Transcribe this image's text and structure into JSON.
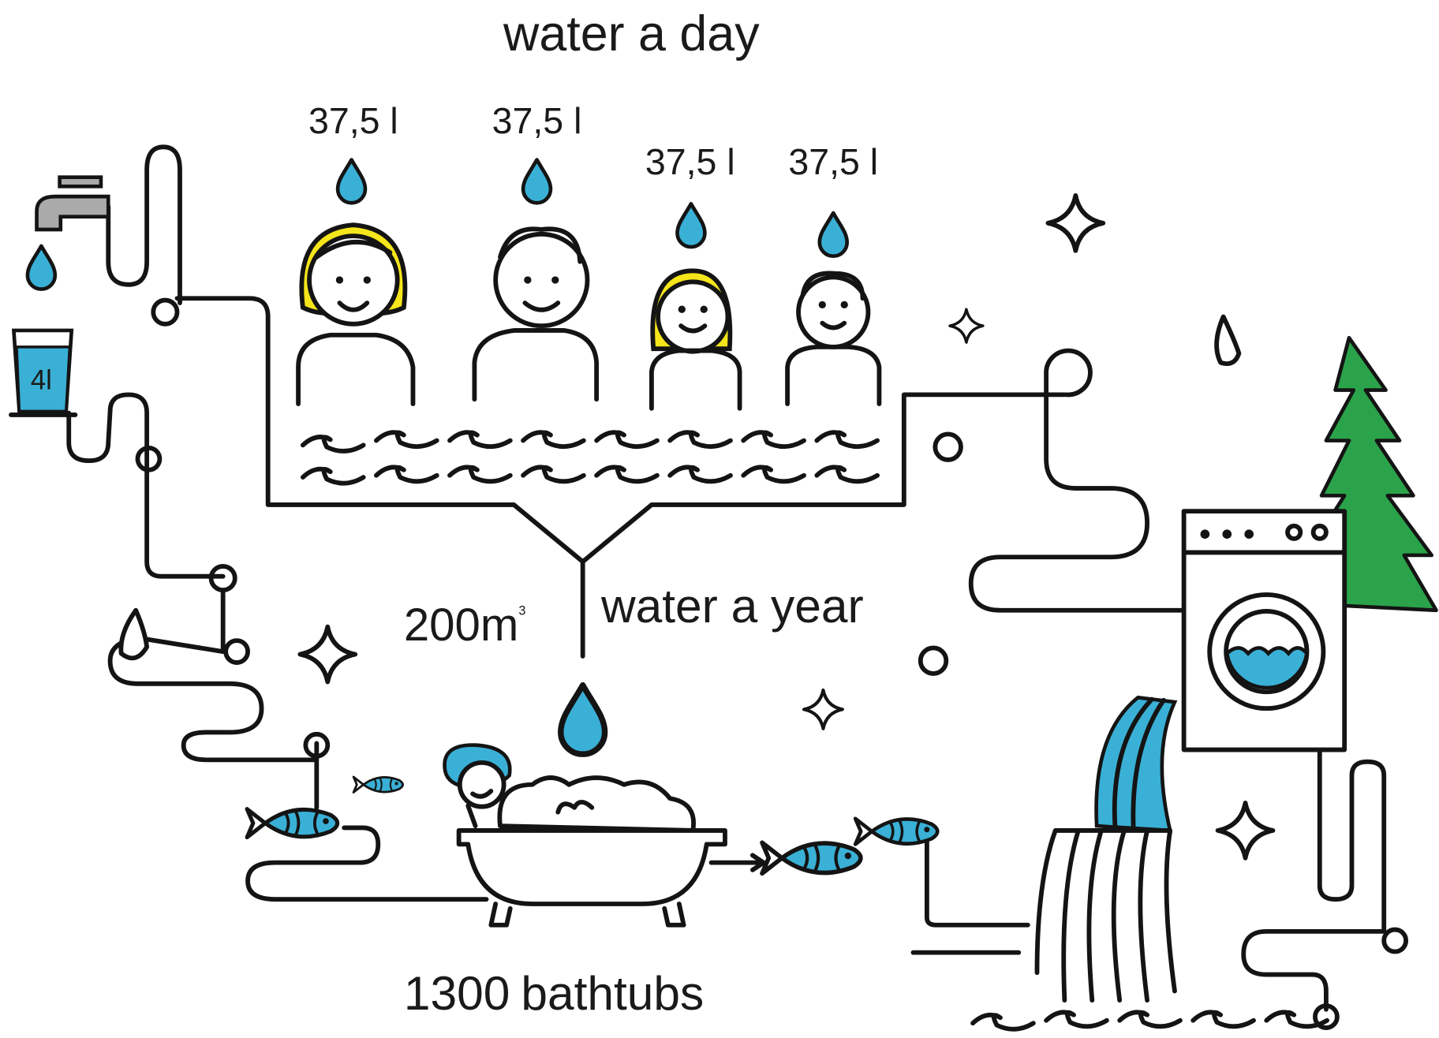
{
  "title": "water a day",
  "persons": [
    {
      "amount": "37,5 l"
    },
    {
      "amount": "37,5 l"
    },
    {
      "amount": "37,5 l"
    },
    {
      "amount": "37,5 l"
    }
  ],
  "glass": {
    "label": "4l"
  },
  "year": {
    "amount": "200m",
    "exponent": "3",
    "label": "water a year"
  },
  "bathtubs": {
    "count": "1300",
    "label": "bathtubs"
  }
}
